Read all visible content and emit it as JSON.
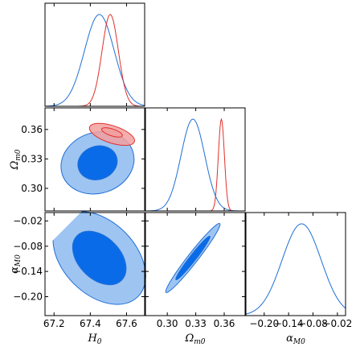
{
  "chart_data": {
    "type": "triangle-corner",
    "parameters": [
      {
        "key": "H0",
        "label_base": "H",
        "label_sub": "0",
        "range": [
          67.15,
          67.7
        ],
        "ticks": [
          67.2,
          67.4,
          67.6
        ],
        "tick_labels": [
          "67.2",
          "67.4",
          "67.6"
        ]
      },
      {
        "key": "Om0",
        "label_base": "Ω",
        "label_sub": "m0",
        "range": [
          0.277,
          0.382
        ],
        "ticks": [
          0.3,
          0.33,
          0.36
        ],
        "tick_labels": [
          "0.30",
          "0.33",
          "0.36"
        ]
      },
      {
        "key": "aM0",
        "label_base": "α",
        "label_sub": "M0",
        "range": [
          -0.245,
          0.0
        ],
        "ticks": [
          -0.2,
          -0.14,
          -0.08,
          -0.02
        ],
        "tick_labels": [
          "−0.20",
          "−0.14",
          "−0.08",
          "−0.02"
        ]
      }
    ],
    "colors": {
      "blue": "#1f6fd6",
      "blue_fill_inner": "#0a6be8",
      "blue_fill_outer": "#9ec4f2",
      "red": "#e0302a",
      "red_fill": "#f2a0a0"
    },
    "marginals": [
      {
        "param": "H0",
        "curves": [
          {
            "color": "blue",
            "mean": 67.45,
            "sd": 0.082
          },
          {
            "color": "red",
            "mean": 67.51,
            "sd": 0.045
          }
        ]
      },
      {
        "param": "Om0",
        "curves": [
          {
            "color": "blue",
            "mean": 0.327,
            "sd": 0.0125
          },
          {
            "color": "red",
            "mean": 0.357,
            "sd": 0.0032
          }
        ]
      },
      {
        "param": "aM0",
        "curves": [
          {
            "color": "blue",
            "mean": -0.108,
            "sd": 0.048
          }
        ]
      }
    ],
    "contours": [
      {
        "x": "H0",
        "y": "Om0",
        "ellipses": [
          {
            "color": "blue",
            "level": "outer",
            "cx": 67.44,
            "cy": 0.326,
            "rx": 0.205,
            "ry": 0.031,
            "angle": 18
          },
          {
            "color": "blue",
            "level": "inner",
            "cx": 67.44,
            "cy": 0.326,
            "rx": 0.11,
            "ry": 0.017,
            "angle": 18
          },
          {
            "color": "red",
            "level": "outer",
            "cx": 67.52,
            "cy": 0.355,
            "rx": 0.13,
            "ry": 0.0088,
            "angle": -18
          },
          {
            "color": "red",
            "level": "inner",
            "cx": 67.52,
            "cy": 0.357,
            "rx": 0.06,
            "ry": 0.0035,
            "angle": -18
          }
        ]
      },
      {
        "x": "H0",
        "y": "aM0",
        "ellipses": [
          {
            "color": "blue",
            "level": "outer",
            "cx": 67.45,
            "cy": -0.108,
            "rx": 0.2,
            "ry": 0.13,
            "angle": 45
          },
          {
            "color": "blue",
            "level": "inner",
            "cx": 67.45,
            "cy": -0.108,
            "rx": 0.115,
            "ry": 0.075,
            "angle": 45
          }
        ]
      },
      {
        "x": "Om0",
        "y": "aM0",
        "ellipses": [
          {
            "color": "blue",
            "level": "outer",
            "cx": 0.327,
            "cy": -0.108,
            "rx": 0.046,
            "ry": 0.012,
            "angle": 52
          },
          {
            "color": "blue",
            "level": "inner",
            "cx": 0.327,
            "cy": -0.108,
            "rx": 0.029,
            "ry": 0.0075,
            "angle": 52
          }
        ]
      }
    ]
  }
}
